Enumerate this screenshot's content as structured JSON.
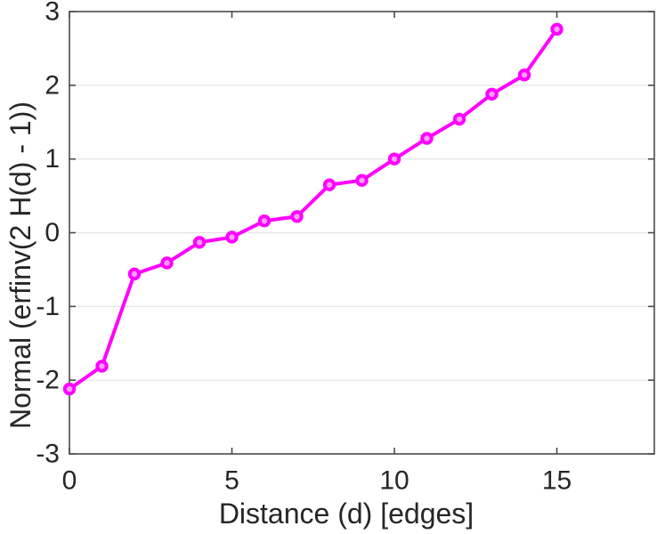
{
  "chart_data": {
    "type": "line",
    "title": "",
    "xlabel": "Distance (d) [edges]",
    "ylabel": "Normal (erfinv(2 H(d) - 1))",
    "x": [
      0,
      1,
      2,
      3,
      4,
      5,
      6,
      7,
      8,
      9,
      10,
      11,
      12,
      13,
      14,
      15
    ],
    "y": [
      -2.12,
      -1.81,
      -0.56,
      -0.41,
      -0.13,
      -0.06,
      0.16,
      0.22,
      0.65,
      0.71,
      1.0,
      1.28,
      1.54,
      1.88,
      2.14,
      2.76
    ],
    "xlim": [
      0,
      18
    ],
    "ylim": [
      -3,
      3
    ],
    "xticks": [
      0,
      5,
      10,
      15
    ],
    "yticks": [
      -3,
      -2,
      -1,
      0,
      1,
      2,
      3
    ],
    "grid": "horizontal-only",
    "legend": "none",
    "box": true,
    "tick_direction": "in",
    "line_color": "#ff00ff",
    "marker": "open-circle",
    "marker_fill": "#ff9dff",
    "grid_color": "#e3e3e3",
    "axis_color": "#4a4a4a",
    "text_color": "#262626"
  }
}
